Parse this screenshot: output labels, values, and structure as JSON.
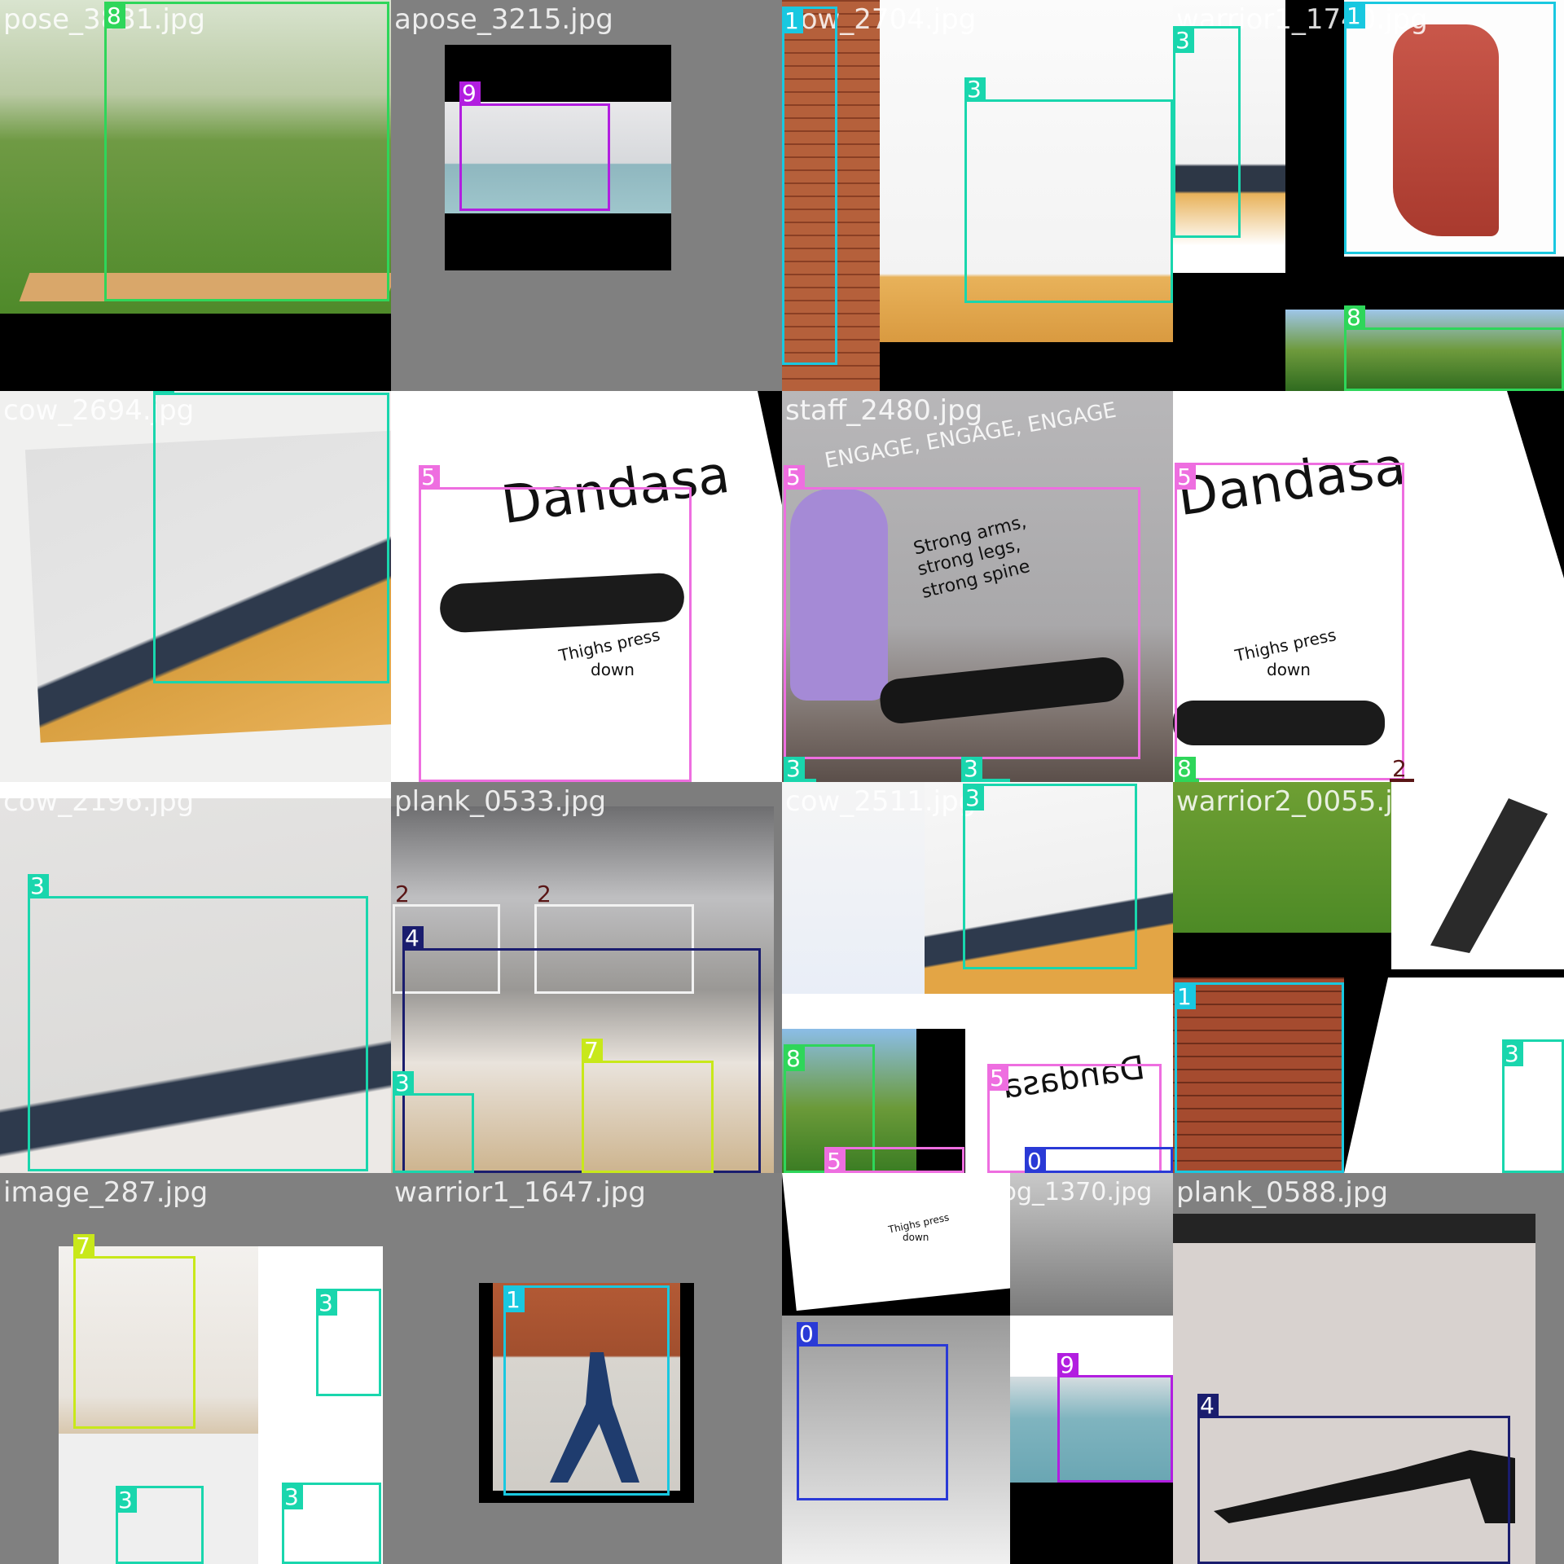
{
  "palette": {
    "0": "#2a3ad6",
    "1": "#19c8e0",
    "2": "#5a1616",
    "3": "#19d6ad",
    "4": "#1a1d6e",
    "5": "#ee6ee0",
    "7": "#c8e81a",
    "8": "#2ed65a",
    "9": "#b21ee0"
  },
  "tiles": [
    {
      "filename": "pose_3831.jpg",
      "labels": [
        "8"
      ]
    },
    {
      "filename": "apose_3215.jpg",
      "labels": [
        "9"
      ]
    },
    {
      "filename": "cow_2704.jpg",
      "labels": [
        "1",
        "3"
      ]
    },
    {
      "filename": "warrior1_1740.jpg",
      "labels": [
        "3",
        "1",
        "8"
      ]
    },
    {
      "filename": "cow_2694.jpg",
      "labels": [
        "3"
      ]
    },
    {
      "filename": "staff_2299.jpg",
      "labels": [
        "5"
      ],
      "texts": [
        "Dandasa",
        "Thighs press",
        "down"
      ]
    },
    {
      "filename": "staff_2480.jpg",
      "labels": [
        "5",
        "3",
        "3"
      ],
      "texts": [
        "ENGAGE, ENGAGE, ENGAGE",
        "Strong arms,",
        "strong legs,",
        "strong spine"
      ]
    },
    {
      "filename": "pose_3376.jpg",
      "labels": [
        "5",
        "8",
        "2"
      ],
      "texts": [
        "Dandasa",
        "Thighs press",
        "down"
      ]
    },
    {
      "filename": "cow_2196.jpg",
      "labels": [
        "3"
      ]
    },
    {
      "filename": "plank_0533.jpg",
      "labels": [
        "2",
        "2",
        "4",
        "3",
        "7"
      ]
    },
    {
      "filename": "cow_2511.jpg",
      "labels": [
        "3",
        "8",
        "5",
        "5",
        "0"
      ],
      "texts": [
        "Dandasa"
      ]
    },
    {
      "filename": "warrior2_0055.jpg",
      "labels": [
        "1",
        "3"
      ]
    },
    {
      "filename": "image_287.jpg",
      "labels": [
        "7",
        "3",
        "3",
        "3"
      ]
    },
    {
      "filename": "warrior1_1647.jpg",
      "labels": [
        "1"
      ]
    },
    {
      "filename": "downwardfacingdog_1370.jpg",
      "labels": [
        "0",
        "9"
      ],
      "texts": [
        "Thighs press",
        "down"
      ]
    },
    {
      "filename": "plank_0588.jpg",
      "labels": [
        "4"
      ]
    }
  ]
}
